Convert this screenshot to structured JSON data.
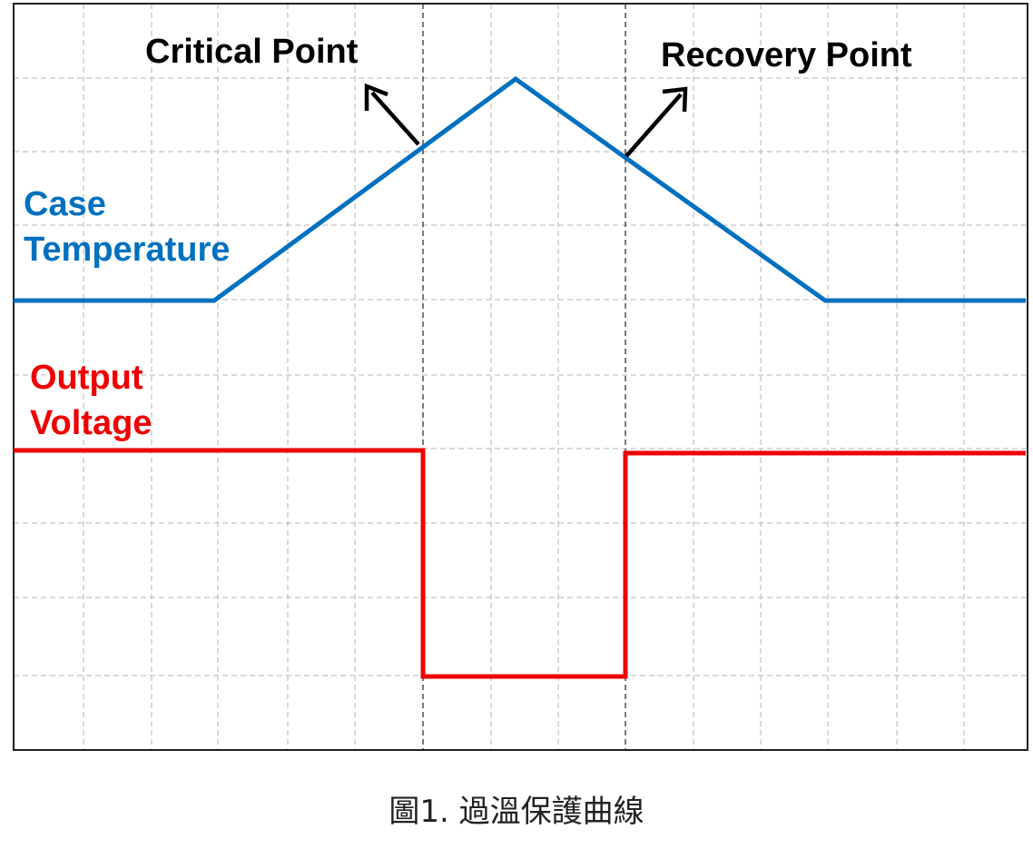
{
  "diagram": {
    "title": "",
    "annotations": {
      "critical_point": "Critical Point",
      "recovery_point": "Recovery Point"
    },
    "signals": {
      "case_temperature": {
        "label_line1": "Case",
        "label_line2": "Temperature",
        "color": "#0070C0"
      },
      "output_voltage": {
        "label_line1": "Output",
        "label_line2": "Voltage",
        "color": "#EE0000"
      }
    },
    "colors": {
      "grid": "#b4b4b4",
      "marker": "#333333",
      "frame": "#222222",
      "arrow": "#000000"
    },
    "grid": true
  },
  "caption": "圖1. 過溫保護曲線"
}
